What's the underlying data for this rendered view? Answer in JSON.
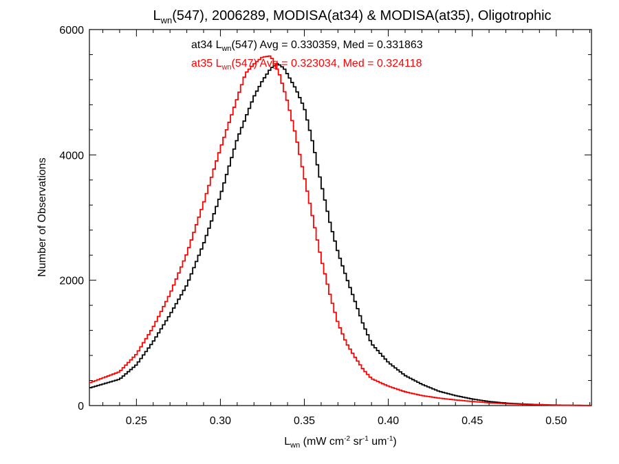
{
  "chart_data": {
    "type": "line",
    "title": {
      "prefix": "L",
      "sub": "wn",
      "suffix": "(547), 2006289, MODISA(at34) & MODISA(at35), Oligotrophic"
    },
    "xlabel": {
      "prefix": "L",
      "sub": "wn",
      "part1": " (mW cm",
      "sup1": "-2",
      "part2": " sr",
      "sup2": "-1",
      "part3": " um",
      "sup3": "-1",
      "part4": ")"
    },
    "ylabel": "Number of Observations",
    "xlim": [
      0.222,
      0.521
    ],
    "ylim": [
      0,
      6000
    ],
    "x_ticks": [
      "0.25",
      "0.30",
      "0.35",
      "0.40",
      "0.45",
      "0.50"
    ],
    "y_ticks": [
      "0",
      "2000",
      "4000",
      "6000"
    ],
    "series": [
      {
        "key": "at34",
        "color": "#000000",
        "legend": {
          "prefix": "at34 L",
          "sub": "wn",
          "suffix": "(547) Avg = 0.330359, Med = 0.331863"
        },
        "points": [
          [
            0.222,
            280
          ],
          [
            0.24,
            420
          ],
          [
            0.25,
            650
          ],
          [
            0.26,
            1020
          ],
          [
            0.27,
            1450
          ],
          [
            0.28,
            1920
          ],
          [
            0.29,
            2580
          ],
          [
            0.3,
            3350
          ],
          [
            0.31,
            4250
          ],
          [
            0.32,
            4930
          ],
          [
            0.325,
            5180
          ],
          [
            0.33,
            5380
          ],
          [
            0.334,
            5460
          ],
          [
            0.338,
            5380
          ],
          [
            0.345,
            5050
          ],
          [
            0.35,
            4750
          ],
          [
            0.355,
            4200
          ],
          [
            0.36,
            3550
          ],
          [
            0.365,
            2950
          ],
          [
            0.37,
            2450
          ],
          [
            0.375,
            2050
          ],
          [
            0.38,
            1680
          ],
          [
            0.385,
            1300
          ],
          [
            0.39,
            990
          ],
          [
            0.4,
            690
          ],
          [
            0.41,
            480
          ],
          [
            0.42,
            340
          ],
          [
            0.43,
            230
          ],
          [
            0.44,
            160
          ],
          [
            0.45,
            105
          ],
          [
            0.46,
            65
          ],
          [
            0.47,
            40
          ],
          [
            0.48,
            25
          ],
          [
            0.49,
            15
          ],
          [
            0.5,
            8
          ],
          [
            0.51,
            4
          ],
          [
            0.521,
            2
          ]
        ]
      },
      {
        "key": "at35",
        "color": "#ff0000",
        "legend": {
          "prefix": "at35 L",
          "sub": "wn",
          "suffix": "(547) Avg = 0.323034, Med = 0.324118"
        },
        "points": [
          [
            0.222,
            360
          ],
          [
            0.24,
            540
          ],
          [
            0.25,
            820
          ],
          [
            0.26,
            1250
          ],
          [
            0.27,
            1780
          ],
          [
            0.28,
            2420
          ],
          [
            0.29,
            3230
          ],
          [
            0.3,
            4100
          ],
          [
            0.31,
            4900
          ],
          [
            0.315,
            5300
          ],
          [
            0.32,
            5450
          ],
          [
            0.325,
            5560
          ],
          [
            0.33,
            5580
          ],
          [
            0.335,
            5300
          ],
          [
            0.34,
            4850
          ],
          [
            0.345,
            4300
          ],
          [
            0.35,
            3650
          ],
          [
            0.355,
            3000
          ],
          [
            0.36,
            2350
          ],
          [
            0.365,
            1800
          ],
          [
            0.37,
            1320
          ],
          [
            0.375,
            1000
          ],
          [
            0.38,
            780
          ],
          [
            0.385,
            580
          ],
          [
            0.39,
            430
          ],
          [
            0.4,
            310
          ],
          [
            0.41,
            220
          ],
          [
            0.42,
            160
          ],
          [
            0.43,
            120
          ],
          [
            0.44,
            90
          ],
          [
            0.45,
            65
          ],
          [
            0.46,
            45
          ],
          [
            0.47,
            30
          ],
          [
            0.48,
            20
          ],
          [
            0.49,
            12
          ],
          [
            0.5,
            6
          ],
          [
            0.51,
            3
          ],
          [
            0.521,
            1
          ]
        ]
      }
    ]
  }
}
